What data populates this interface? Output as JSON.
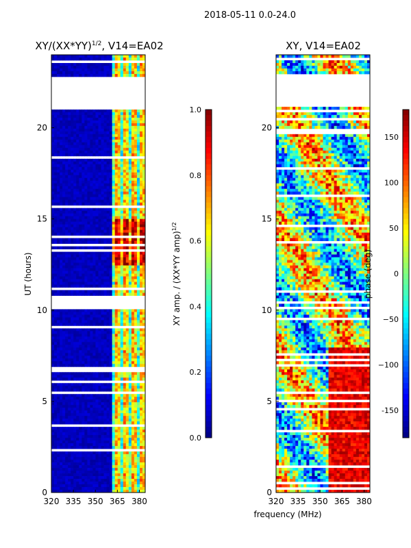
{
  "figure": {
    "suptitle": "2018-05-11 0.0-24.0",
    "xlabel": "frequency (MHz)",
    "ylabel": "UT (hours)"
  },
  "chart_data": [
    {
      "type": "heatmap",
      "title_main": "XY/(XX*YY)",
      "title_sup": "1/2",
      "title_tail": ", V14=EA02",
      "x_ticks": [
        "320",
        "335",
        "350",
        "365",
        "380"
      ],
      "x_tick_values": [
        320,
        335,
        350,
        365,
        380
      ],
      "xlim": [
        320,
        384
      ],
      "y_ticks": [
        "0",
        "5",
        "10",
        "15",
        "20"
      ],
      "y_tick_values": [
        0,
        5,
        10,
        15,
        20
      ],
      "ylim": [
        0,
        24
      ],
      "gap_hours": [
        21.2,
        22.8
      ],
      "colorbar": {
        "label_main": "XY amp. / (XX*YY amp)",
        "label_sup": "1/2",
        "ticks": [
          "0.0",
          "0.2",
          "0.4",
          "0.6",
          "0.8",
          "1.0"
        ],
        "tick_values": [
          0.0,
          0.2,
          0.4,
          0.6,
          0.8,
          1.0
        ],
        "range": [
          0.0,
          1.0
        ],
        "colormap": "jet"
      }
    },
    {
      "type": "heatmap",
      "title": "XY, V14=EA02",
      "x_ticks": [
        "320",
        "335",
        "350",
        "365",
        "380"
      ],
      "x_tick_values": [
        320,
        335,
        350,
        365,
        380
      ],
      "xlim": [
        320,
        384
      ],
      "y_ticks": [
        "0",
        "5",
        "10",
        "15",
        "20"
      ],
      "y_tick_values": [
        0,
        5,
        10,
        15,
        20
      ],
      "ylim": [
        0,
        24
      ],
      "gap_hours": [
        21.2,
        22.8
      ],
      "colorbar": {
        "label": "phase (deg)",
        "ticks": [
          "-150",
          "−100",
          "−50",
          "0",
          "50",
          "100",
          "150"
        ],
        "tick_values": [
          -150,
          -100,
          -50,
          0,
          50,
          100,
          150
        ],
        "range": [
          -180,
          180
        ],
        "colormap": "jet"
      }
    }
  ]
}
